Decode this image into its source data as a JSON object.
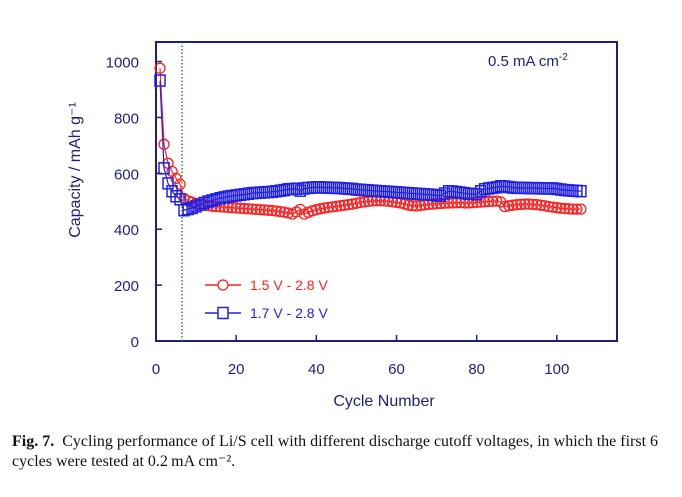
{
  "chart_data": {
    "type": "scatter",
    "title": "",
    "xlabel": "Cycle Number",
    "ylabel": "Capacity / mAh g⁻¹",
    "xlim": [
      0,
      115
    ],
    "ylim": [
      0,
      1070
    ],
    "xticks": [
      0,
      20,
      40,
      60,
      80,
      100
    ],
    "yticks": [
      0,
      200,
      400,
      600,
      800,
      1000
    ],
    "grid": false,
    "legend_position": "bottom-left",
    "annotation": "0.5 mA cm",
    "annotation_sup": "-2",
    "vline": {
      "x": 6.5,
      "style": "dotted",
      "color": "#2e8b2e"
    },
    "series": [
      {
        "name": "1.5 V - 2.8 V",
        "marker": "circle",
        "color": "#ff2020",
        "x": [
          1,
          2,
          3,
          4,
          5,
          6,
          7,
          8,
          9,
          10,
          11,
          12,
          13,
          14,
          15,
          16,
          17,
          18,
          19,
          20,
          21,
          22,
          23,
          24,
          25,
          26,
          27,
          28,
          29,
          30,
          31,
          32,
          33,
          34,
          35,
          36,
          37,
          38,
          39,
          40,
          41,
          42,
          43,
          44,
          45,
          46,
          47,
          48,
          49,
          50,
          51,
          52,
          53,
          54,
          55,
          56,
          57,
          58,
          59,
          60,
          61,
          62,
          63,
          64,
          65,
          66,
          67,
          68,
          69,
          70,
          71,
          72,
          73,
          74,
          75,
          76,
          77,
          78,
          79,
          80,
          81,
          82,
          83,
          84,
          85,
          86,
          87,
          88,
          89,
          90,
          91,
          92,
          93,
          94,
          95,
          96,
          97,
          98,
          99,
          100,
          101,
          102,
          103,
          104,
          105,
          106
        ],
        "y": [
          976,
          704,
          636,
          607,
          582,
          561,
          510,
          502,
          497,
          492,
          489,
          486,
          484,
          482,
          481,
          480,
          479,
          478,
          477,
          476,
          475,
          474,
          473,
          472,
          471,
          470,
          469,
          468,
          467,
          465,
          463,
          461,
          458,
          454,
          462,
          471,
          454,
          460,
          466,
          470,
          473,
          476,
          478,
          480,
          482,
          484,
          486,
          488,
          490,
          493,
          496,
          498,
          500,
          501,
          502,
          502,
          501,
          500,
          498,
          496,
          494,
          490,
          486,
          484,
          483,
          485,
          487,
          489,
          490,
          491,
          492,
          493,
          494,
          494,
          495,
          495,
          494,
          494,
          495,
          496,
          497,
          498,
          499,
          500,
          501,
          498,
          481,
          484,
          486,
          488,
          489,
          490,
          490,
          489,
          488,
          486,
          484,
          481,
          479,
          477,
          475,
          474,
          473,
          472,
          472,
          472
        ]
      },
      {
        "name": "1.7 V - 2.8 V",
        "marker": "square",
        "color": "#2020e0",
        "x": [
          1,
          2,
          3,
          4,
          5,
          6,
          7,
          8,
          9,
          10,
          11,
          12,
          13,
          14,
          15,
          16,
          17,
          18,
          19,
          20,
          21,
          22,
          23,
          24,
          25,
          26,
          27,
          28,
          29,
          30,
          31,
          32,
          33,
          34,
          35,
          36,
          37,
          38,
          39,
          40,
          41,
          42,
          43,
          44,
          45,
          46,
          47,
          48,
          49,
          50,
          51,
          52,
          53,
          54,
          55,
          56,
          57,
          58,
          59,
          60,
          61,
          62,
          63,
          64,
          65,
          66,
          67,
          68,
          69,
          70,
          71,
          72,
          73,
          74,
          75,
          76,
          77,
          78,
          79,
          80,
          81,
          82,
          83,
          84,
          85,
          86,
          87,
          88,
          89,
          90,
          91,
          92,
          93,
          94,
          95,
          96,
          97,
          98,
          99,
          100,
          101,
          102,
          103,
          104,
          105,
          106
        ],
        "y": [
          932,
          618,
          564,
          536,
          518,
          507,
          468,
          472,
          476,
          482,
          488,
          494,
          499,
          503,
          507,
          511,
          514,
          517,
          519,
          521,
          523,
          525,
          527,
          529,
          530,
          531,
          532,
          533,
          534,
          536,
          538,
          540,
          543,
          544,
          545,
          538,
          546,
          548,
          549,
          550,
          550,
          549,
          549,
          548,
          548,
          547,
          546,
          545,
          544,
          542,
          541,
          540,
          539,
          538,
          537,
          536,
          535,
          534,
          533,
          532,
          531,
          530,
          529,
          528,
          527,
          526,
          525,
          524,
          523,
          521,
          520,
          528,
          536,
          535,
          533,
          531,
          529,
          527,
          526,
          525,
          536,
          543,
          546,
          548,
          550,
          554,
          553,
          551,
          549,
          548,
          548,
          548,
          547,
          547,
          547,
          546,
          546,
          546,
          546,
          544,
          542,
          540,
          539,
          538,
          537,
          536
        ]
      }
    ]
  },
  "caption": {
    "label": "Fig. 7.",
    "text": "Cycling performance of Li/S cell with different discharge cutoff voltages, in which the first 6 cycles were tested at 0.2 mA cm⁻²."
  }
}
